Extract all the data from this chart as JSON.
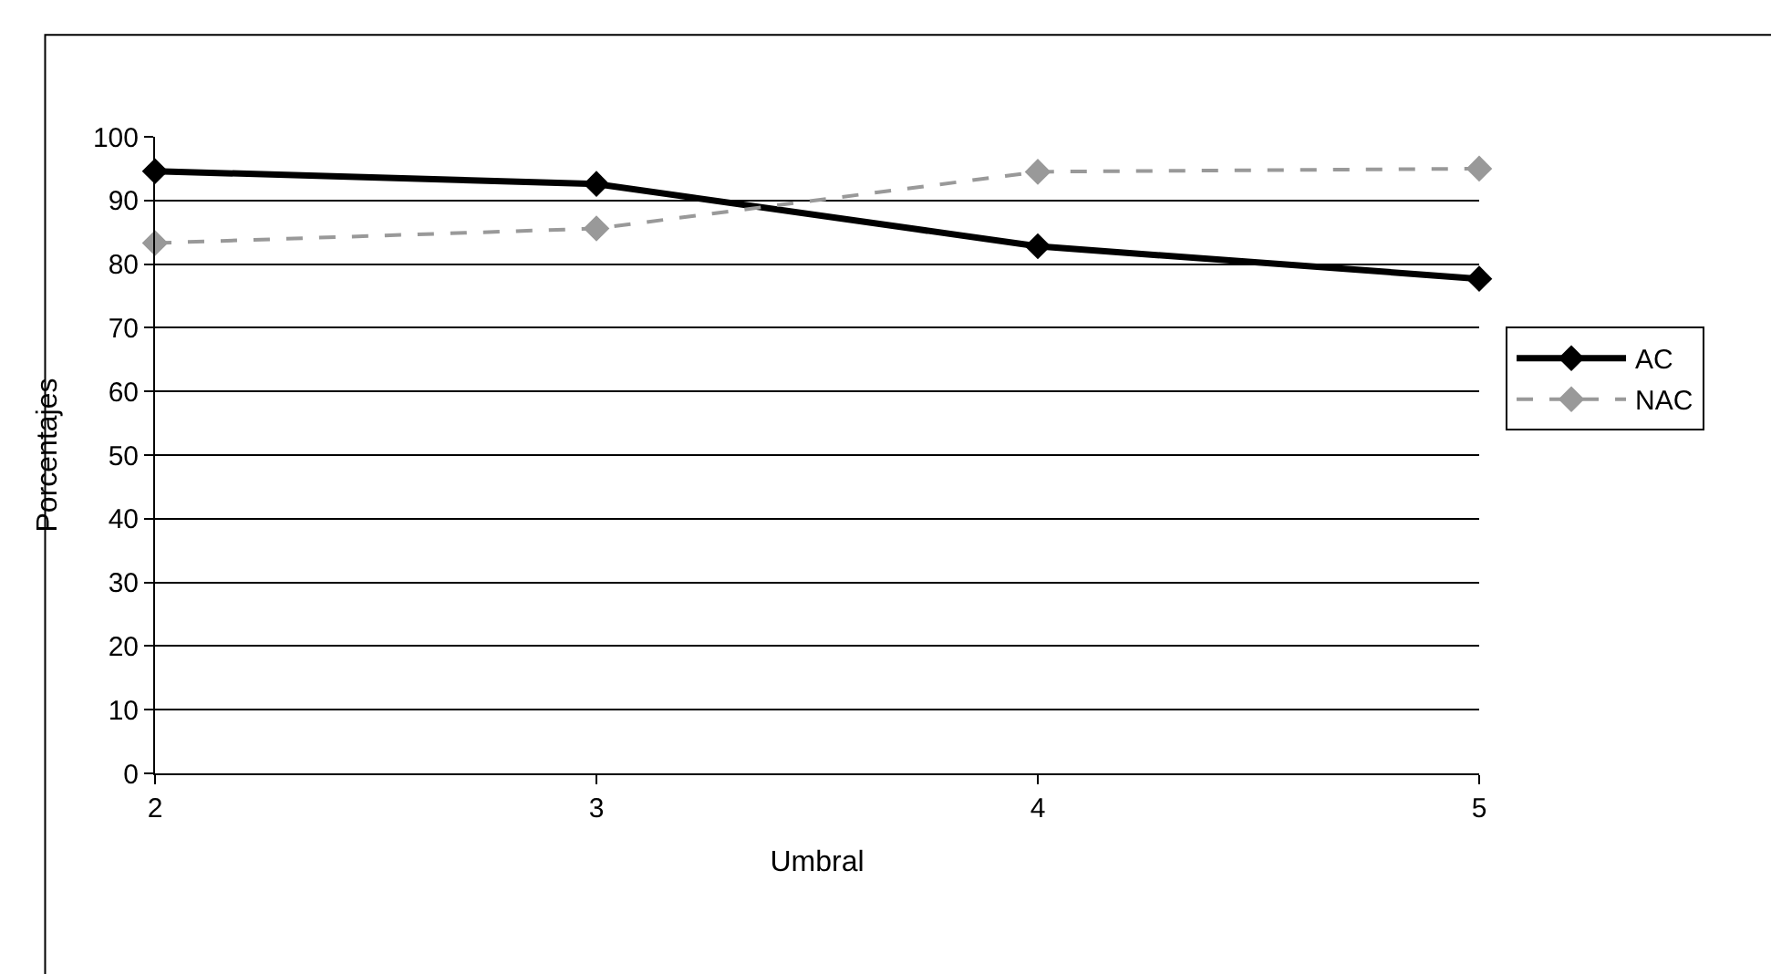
{
  "chart_data": {
    "type": "line",
    "xlabel": "Umbral",
    "ylabel": "Porcentajes",
    "x": [
      2,
      3,
      4,
      5
    ],
    "xlim": [
      2,
      5
    ],
    "xticks": [
      2,
      3,
      4,
      5
    ],
    "ylim": [
      0,
      100
    ],
    "yticks": [
      0,
      10,
      20,
      30,
      40,
      50,
      60,
      70,
      80,
      90,
      100
    ],
    "grid": "y",
    "legend": "right",
    "marker": "diamond",
    "series": [
      {
        "name": "AC",
        "color": "#000000",
        "values": [
          94.6,
          92.6,
          82.8,
          77.7
        ],
        "line_style": "solid"
      },
      {
        "name": "NAC",
        "color": "#999999",
        "values": [
          83.3,
          85.6,
          94.5,
          95
        ],
        "line_style": "dashed"
      }
    ]
  }
}
